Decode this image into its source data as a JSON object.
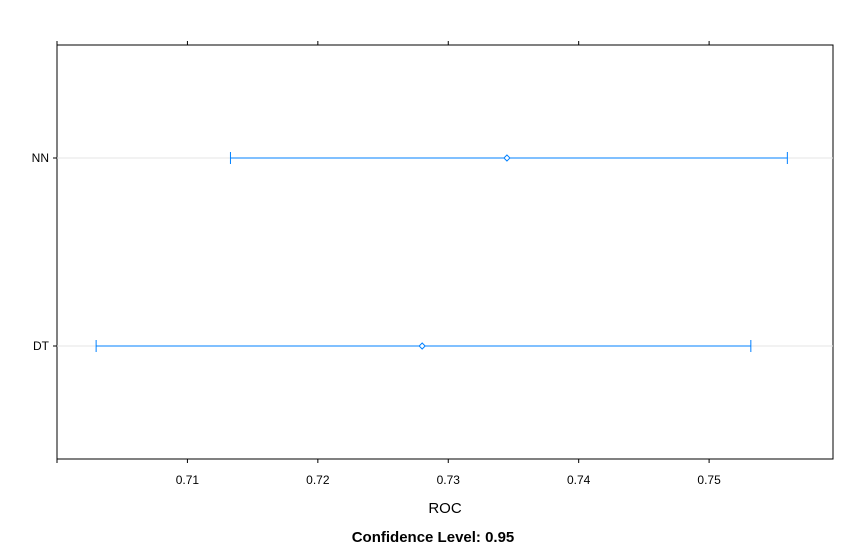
{
  "chart_data": {
    "type": "dotplot-interval",
    "xlabel": "ROC",
    "ylabel": "",
    "caption": "Confidence Level: 0.95",
    "xlim": [
      0.7,
      0.7595
    ],
    "x_ticks": [
      0.71,
      0.72,
      0.73,
      0.74,
      0.75
    ],
    "x_tick_labels": [
      "0.71",
      "0.72",
      "0.73",
      "0.74",
      "0.75"
    ],
    "grid": "horizontal reference lines",
    "series_color": "#0080ff",
    "categories": [
      "NN",
      "DT"
    ],
    "points": [
      {
        "label": "NN",
        "estimate": 0.7345,
        "lower": 0.7133,
        "upper": 0.756
      },
      {
        "label": "DT",
        "estimate": 0.728,
        "lower": 0.703,
        "upper": 0.7532
      }
    ]
  }
}
